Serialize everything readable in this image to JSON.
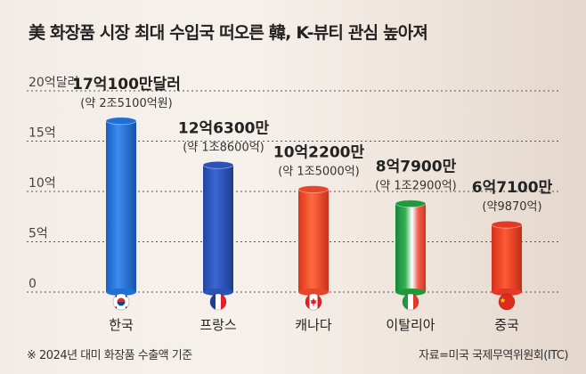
{
  "title": "美 화장품 시장 최대 수입국 떠오른 韓, K-뷰티 관심 높아져",
  "footnote": "※ 2024년 대미 화장품 수출액 기준",
  "source": "자료=미국 국제무역위원회(ITC)",
  "chart_data": {
    "type": "bar",
    "title": "美 화장품 시장 최대 수입국 떠오른 韓, K-뷰티 관심 높아져",
    "categories": [
      "한국",
      "프랑스",
      "캐나다",
      "이탈리아",
      "중국"
    ],
    "values": [
      17.01,
      12.63,
      10.22,
      8.79,
      6.71
    ],
    "unit": "억달러",
    "value_labels": [
      "17억100만달러",
      "12억6300만",
      "10억2200만",
      "8억7900만",
      "6억7100만"
    ],
    "value_sublabels": [
      "(약 2조5100억원)",
      "(약 1조8600억)",
      "(약 1조5000억)",
      "(약 1조2900억)",
      "(약9870억)"
    ],
    "flags": [
      "korea-flag",
      "france-flag",
      "canada-flag",
      "italy-flag",
      "china-flag"
    ],
    "bar_colors": [
      "#1f6fd6",
      "#2a52b8",
      "#e8452a",
      "#1e9a3c",
      "#e33a26"
    ],
    "yticks": [
      0,
      5,
      10,
      15,
      20
    ],
    "ytick_labels": [
      "0",
      "5억",
      "10억",
      "15억",
      "20억달러"
    ],
    "ylim": [
      0,
      20
    ],
    "xlabel": "",
    "ylabel": "",
    "grid": true
  }
}
